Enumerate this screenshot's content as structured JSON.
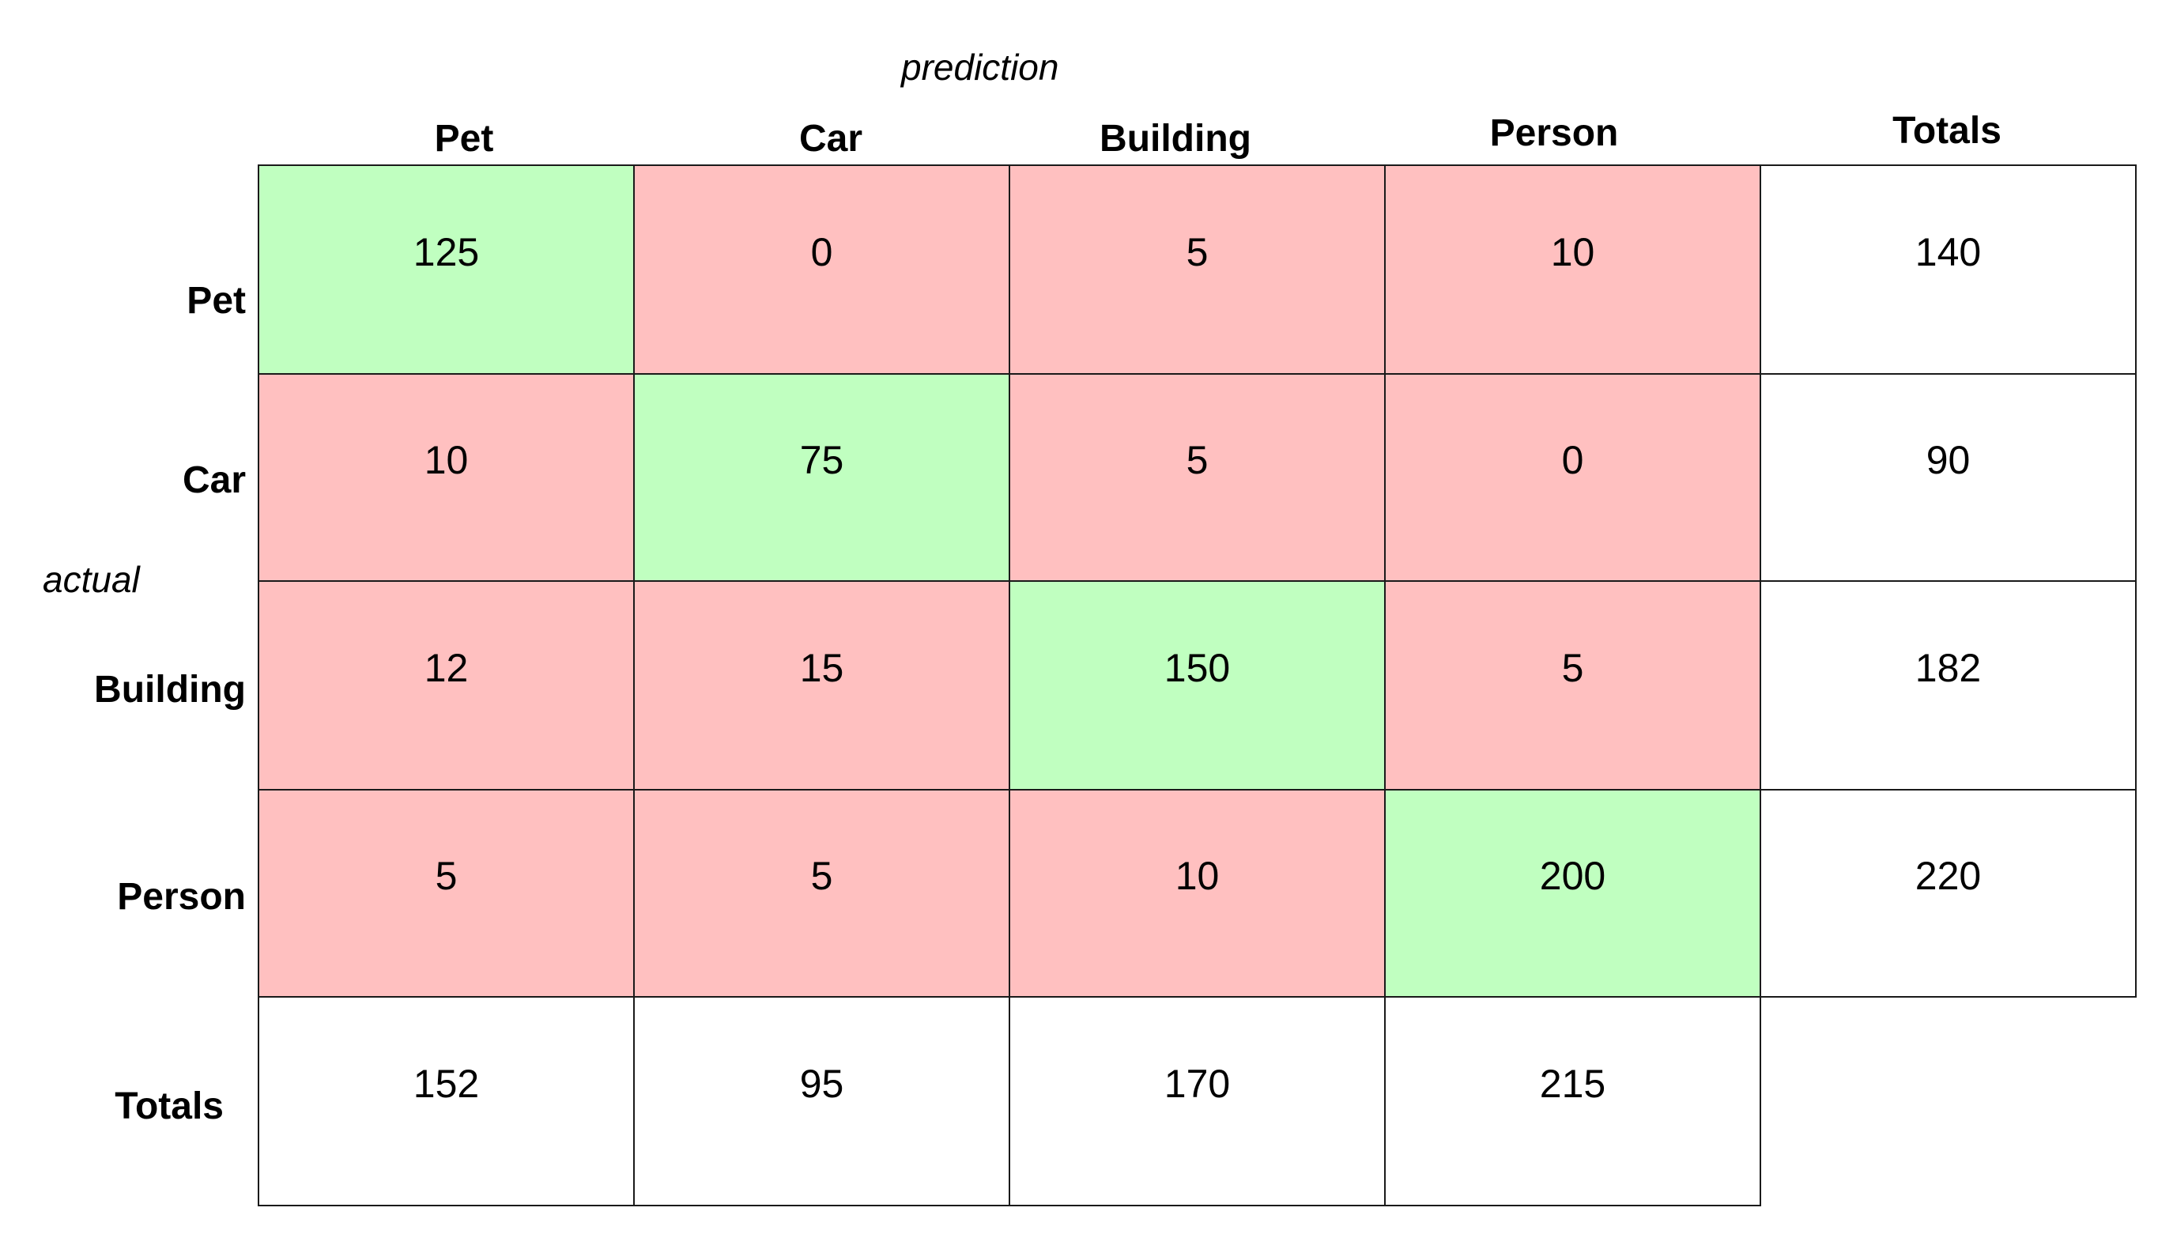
{
  "axes": {
    "column_axis_label": "prediction",
    "row_axis_label": "actual"
  },
  "columns": [
    "Pet",
    "Car",
    "Building",
    "Person",
    "Totals"
  ],
  "rows": [
    {
      "label": "Pet",
      "values": [
        "125",
        "0",
        "5",
        "10"
      ],
      "total": "140"
    },
    {
      "label": "Car",
      "values": [
        "10",
        "75",
        "5",
        "0"
      ],
      "total": "90"
    },
    {
      "label": "Building",
      "values": [
        "12",
        "15",
        "150",
        "5"
      ],
      "total": "182"
    },
    {
      "label": "Person",
      "values": [
        "5",
        "5",
        "10",
        "200"
      ],
      "total": "220"
    }
  ],
  "totals_row": {
    "label": "Totals",
    "values": [
      "152",
      "95",
      "170",
      "215"
    ]
  },
  "colors": {
    "correct": "#c0ffc0",
    "error": "#ffc0c0",
    "total": "#ffffff",
    "border": "#1a1a1a"
  }
}
